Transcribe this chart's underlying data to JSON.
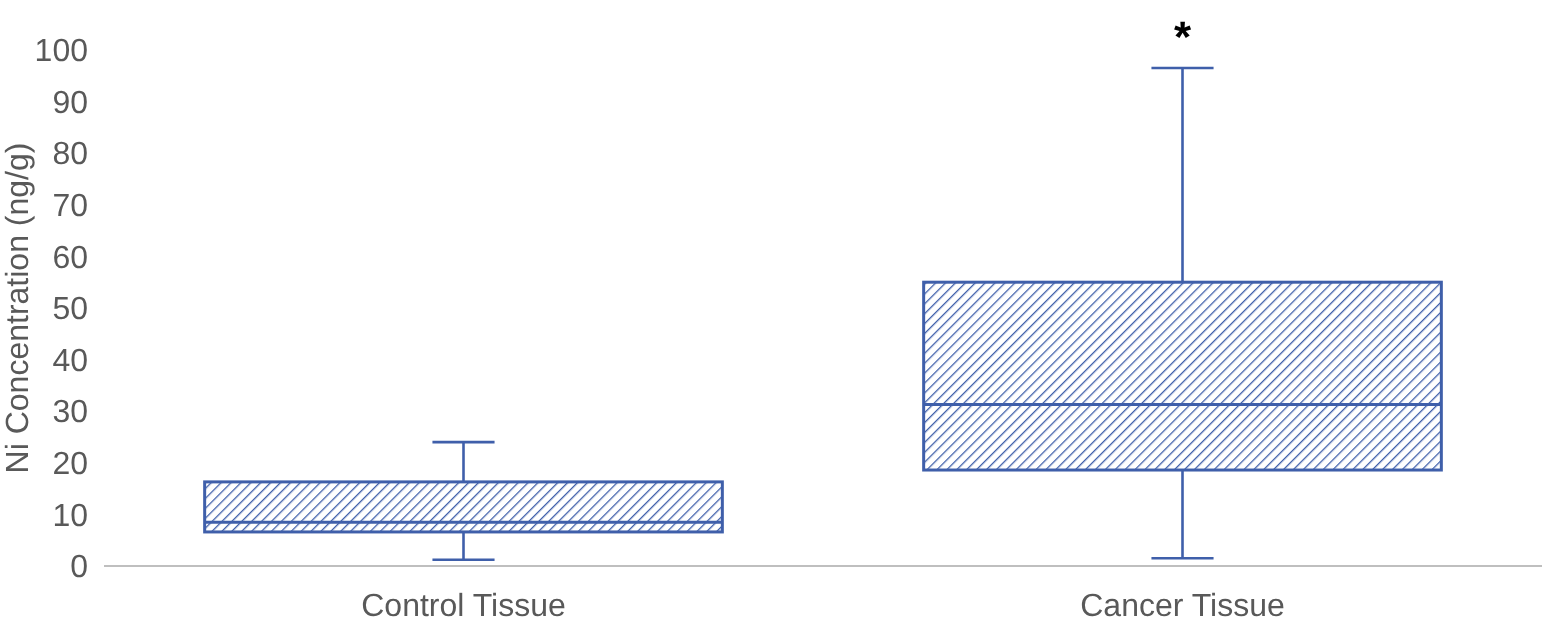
{
  "chart_data": {
    "type": "box",
    "ylabel": "Ni Concentration (ng/g)",
    "categories": [
      "Control Tissue",
      "Cancer Tissue"
    ],
    "color": "#3f5faa",
    "boxes": [
      {
        "low": 1.2,
        "q1": 6.6,
        "median": 8.5,
        "q3": 16.3,
        "high": 24
      },
      {
        "low": 1.5,
        "q1": 18.6,
        "median": 31.3,
        "q3": 55,
        "high": 96.5
      }
    ],
    "ylim": [
      0,
      100
    ],
    "yticks": [
      0,
      10,
      20,
      30,
      40,
      50,
      60,
      70,
      80,
      90,
      100
    ],
    "grid": false,
    "annotations": [
      "*"
    ]
  }
}
